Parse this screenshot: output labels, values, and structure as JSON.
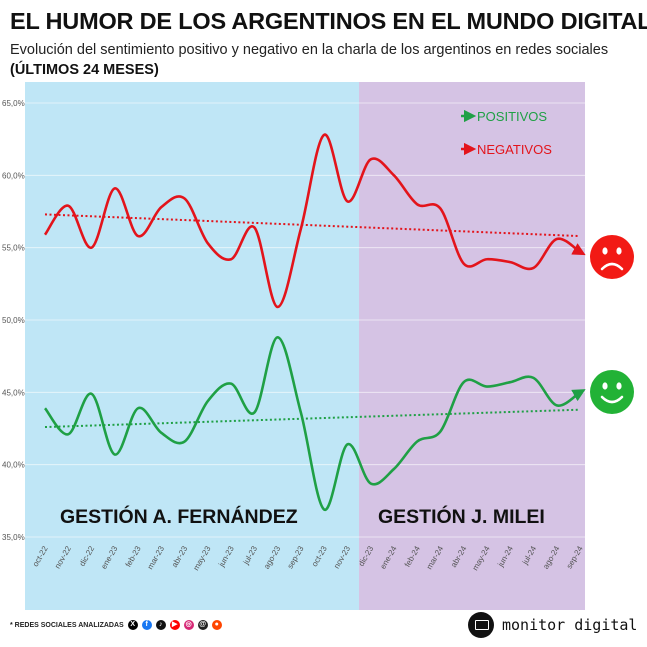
{
  "header": {
    "title": "EL HUMOR DE LOS ARGENTINOS EN EL MUNDO DIGITAL",
    "subtitle": "Evolución del sentimiento positivo y negativo en la charla de los argentinos en redes sociales",
    "period": "(ÚLTIMOS 24 MESES)"
  },
  "legend": {
    "positive": "POSITIVOS",
    "negative": "NEGATIVOS"
  },
  "periods": {
    "left": "GESTIÓN A. FERNÁNDEZ",
    "right": "GESTIÓN J. MILEI"
  },
  "footer": {
    "networks_label": "* REDES SOCIALES ANALIZADAS",
    "brand": "monitor digital"
  },
  "colors": {
    "positive": "#1fa045",
    "negative": "#e3141b",
    "fernandez_bg": "#bfe6f6",
    "milei_bg": "#d5c3e4",
    "face_sad": "#f21a15",
    "face_happy": "#22b236"
  },
  "chart_data": {
    "type": "line",
    "categories": [
      "oct-22",
      "nov-22",
      "dic-22",
      "ene-23",
      "feb-23",
      "mar-23",
      "abr-23",
      "may-23",
      "jun-23",
      "jul-23",
      "ago-23",
      "sep-23",
      "oct-23",
      "nov-23",
      "dic-23",
      "ene-24",
      "feb-24",
      "mar-24",
      "abr-24",
      "may-24",
      "jun-24",
      "jul-24",
      "ago-24",
      "sep-24"
    ],
    "series": [
      {
        "name": "NEGATIVOS",
        "values": [
          55.9,
          57.9,
          55.0,
          59.1,
          55.8,
          57.8,
          58.4,
          55.3,
          54.2,
          56.4,
          50.9,
          56.3,
          62.8,
          58.2,
          61.1,
          60.0,
          58.0,
          57.7,
          53.9,
          54.2,
          54.0,
          53.6,
          55.6,
          54.7
        ]
      },
      {
        "name": "POSITIVOS",
        "values": [
          43.9,
          42.1,
          44.9,
          40.7,
          43.9,
          42.2,
          41.6,
          44.4,
          45.6,
          43.6,
          48.8,
          43.6,
          36.9,
          41.4,
          38.7,
          39.7,
          41.6,
          42.3,
          45.7,
          45.4,
          45.7,
          46.0,
          44.1,
          45.0
        ]
      }
    ],
    "ylim": [
      35,
      65
    ],
    "yticks": [
      "35,0%",
      "40,0%",
      "45,0%",
      "50,0%",
      "55,0%",
      "60,0%",
      "65,0%"
    ],
    "trend_negative": [
      57.3,
      55.8
    ],
    "trend_positive": [
      42.6,
      43.8
    ],
    "grid": true
  }
}
